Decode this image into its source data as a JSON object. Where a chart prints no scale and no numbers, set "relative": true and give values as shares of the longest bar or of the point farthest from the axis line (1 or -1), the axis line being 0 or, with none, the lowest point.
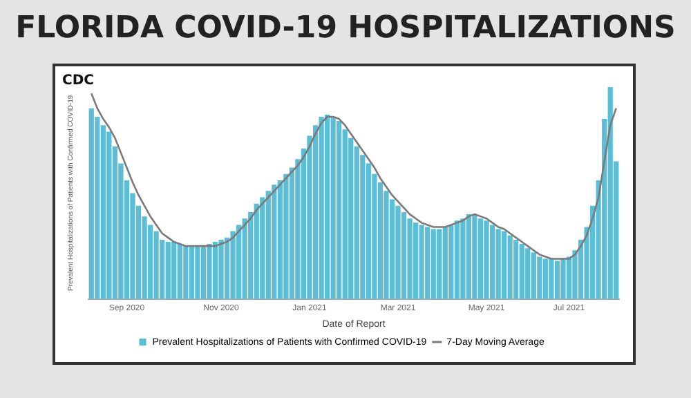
{
  "chart_data": {
    "type": "bar",
    "title": "FLORIDA COVID-19 HOSPITALIZATIONS",
    "annotations": [
      "CDC"
    ],
    "xlabel": "Date of Report",
    "ylabel": "Prevalent Hospitalizations of Patients with Confirmed COVID-19",
    "relative": true,
    "legend": "bottom",
    "tick_labels": "x",
    "categories": [
      null,
      null,
      null,
      null,
      null,
      null,
      "Sep 2020",
      null,
      null,
      null,
      null,
      null,
      null,
      null,
      null,
      null,
      null,
      null,
      null,
      null,
      null,
      null,
      "Nov 2020",
      null,
      null,
      null,
      null,
      null,
      null,
      null,
      null,
      null,
      null,
      null,
      null,
      null,
      null,
      "Jan 2021",
      null,
      null,
      null,
      null,
      null,
      null,
      null,
      null,
      null,
      null,
      null,
      null,
      null,
      null,
      "Mar 2021",
      null,
      null,
      null,
      null,
      null,
      null,
      null,
      null,
      null,
      null,
      null,
      null,
      null,
      null,
      "May 2021",
      null,
      null,
      null,
      null,
      null,
      null,
      null,
      null,
      null,
      null,
      null,
      null,
      null,
      "Jul 2021",
      null,
      null,
      null,
      null,
      null,
      null,
      null,
      null
    ],
    "series": [
      {
        "name": "Prevalent Hospitalizations of Patients with Confirmed COVID-19",
        "color": "#5bbdd6",
        "values": [
          0.9,
          0.86,
          0.82,
          0.79,
          0.72,
          0.64,
          0.56,
          0.5,
          0.44,
          0.39,
          0.35,
          0.32,
          0.28,
          0.27,
          0.27,
          0.26,
          0.25,
          0.25,
          0.25,
          0.25,
          0.26,
          0.27,
          0.28,
          0.29,
          0.32,
          0.35,
          0.38,
          0.41,
          0.45,
          0.48,
          0.51,
          0.54,
          0.56,
          0.59,
          0.62,
          0.66,
          0.71,
          0.77,
          0.82,
          0.86,
          0.87,
          0.86,
          0.84,
          0.8,
          0.76,
          0.72,
          0.68,
          0.64,
          0.59,
          0.55,
          0.51,
          0.47,
          0.44,
          0.41,
          0.38,
          0.36,
          0.35,
          0.34,
          0.33,
          0.33,
          0.34,
          0.35,
          0.37,
          0.38,
          0.4,
          0.4,
          0.38,
          0.37,
          0.35,
          0.33,
          0.32,
          0.3,
          0.28,
          0.26,
          0.24,
          0.22,
          0.2,
          0.19,
          0.19,
          0.18,
          0.19,
          0.2,
          0.23,
          0.28,
          0.34,
          0.44,
          0.56,
          0.85,
          1,
          0.65
        ]
      },
      {
        "name": "7-Day Moving Average",
        "type": "line",
        "color": "#7a7a7a",
        "values": [
          0.97,
          0.9,
          0.85,
          0.81,
          0.76,
          0.69,
          0.62,
          0.55,
          0.49,
          0.44,
          0.39,
          0.35,
          0.31,
          0.29,
          0.27,
          0.26,
          0.25,
          0.25,
          0.25,
          0.25,
          0.25,
          0.25,
          0.26,
          0.27,
          0.29,
          0.32,
          0.35,
          0.38,
          0.42,
          0.45,
          0.48,
          0.51,
          0.54,
          0.57,
          0.6,
          0.63,
          0.67,
          0.72,
          0.78,
          0.83,
          0.86,
          0.86,
          0.85,
          0.82,
          0.78,
          0.74,
          0.7,
          0.66,
          0.62,
          0.57,
          0.53,
          0.49,
          0.46,
          0.43,
          0.4,
          0.38,
          0.36,
          0.35,
          0.34,
          0.34,
          0.34,
          0.35,
          0.36,
          0.37,
          0.39,
          0.4,
          0.39,
          0.38,
          0.36,
          0.34,
          0.33,
          0.31,
          0.29,
          0.27,
          0.25,
          0.23,
          0.21,
          0.2,
          0.19,
          0.19,
          0.19,
          0.19,
          0.21,
          0.25,
          0.3,
          0.38,
          0.48,
          0.65,
          0.82,
          0.9
        ]
      }
    ]
  }
}
